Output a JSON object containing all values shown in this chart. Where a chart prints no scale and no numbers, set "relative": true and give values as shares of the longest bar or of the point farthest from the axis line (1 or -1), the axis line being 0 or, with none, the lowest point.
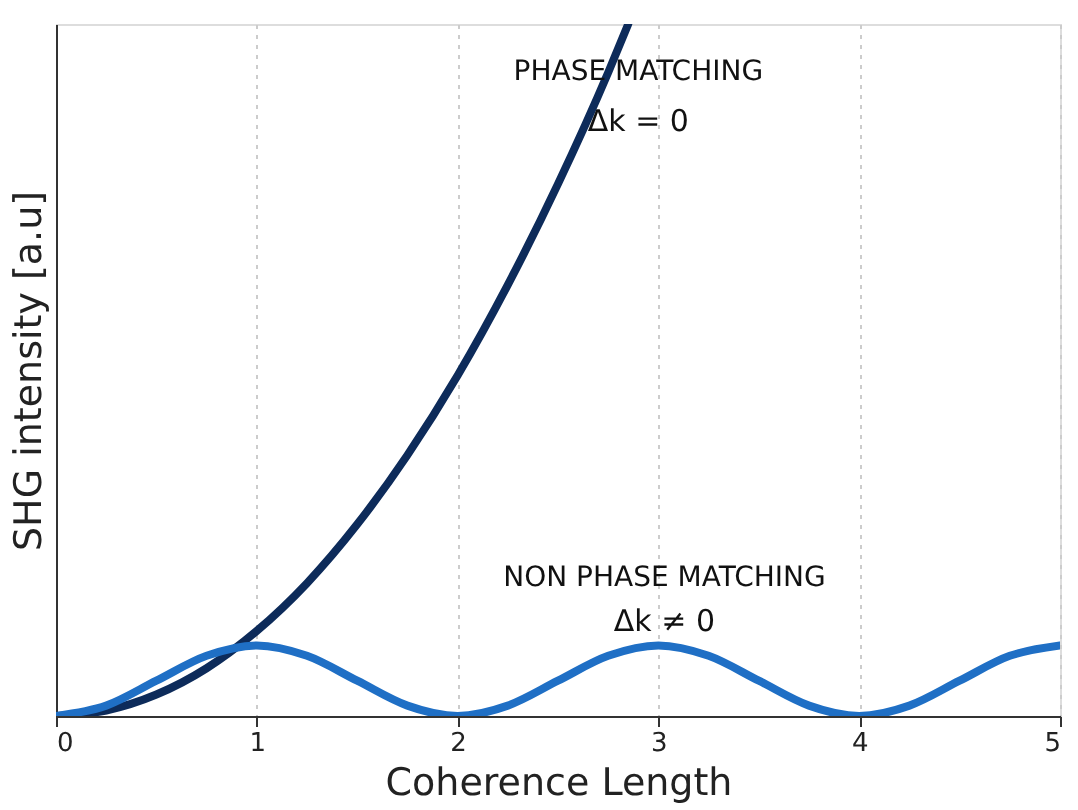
{
  "chart_data": {
    "type": "line",
    "xlabel": "Coherence Length",
    "ylabel": "SHG intensity [a.u]",
    "relative": true,
    "xlim": [
      0,
      5
    ],
    "xticks": [
      0,
      1,
      2,
      3,
      4,
      5
    ],
    "grid": "x",
    "tick_labels": "x",
    "marker": "none",
    "line_style": "solid",
    "series": [
      {
        "name": "PHASE MATCHING",
        "color": "#0d2b5a",
        "x": [
          0,
          0.25,
          0.5,
          0.75,
          1,
          1.25,
          1.5,
          1.75,
          2,
          2.25,
          2.5,
          2.75,
          2.85
        ],
        "values": [
          0,
          0.008,
          0.031,
          0.069,
          0.123,
          0.192,
          0.277,
          0.377,
          0.492,
          0.623,
          0.769,
          0.93,
          1
        ]
      },
      {
        "name": "NON PHASE MATCHING",
        "color": "#1f6fc5",
        "x": [
          0,
          0.25,
          0.5,
          0.75,
          1,
          1.25,
          1.5,
          1.75,
          2,
          2.25,
          2.5,
          2.75,
          3,
          3.25,
          3.5,
          3.75,
          4,
          4.25,
          4.5,
          4.75,
          5
        ],
        "values": [
          0,
          0.015,
          0.051,
          0.087,
          0.102,
          0.087,
          0.051,
          0.015,
          0,
          0.015,
          0.051,
          0.087,
          0.102,
          0.087,
          0.051,
          0.015,
          0,
          0.015,
          0.051,
          0.087,
          0.102
        ]
      }
    ],
    "annotations": [
      "Δk =  0",
      "Δk ≠  0"
    ]
  }
}
